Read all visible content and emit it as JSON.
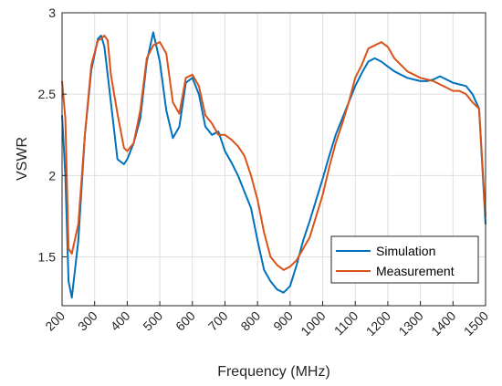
{
  "chart_data": {
    "type": "line",
    "title": "",
    "xlabel": "Frequency (MHz)",
    "ylabel": "VSWR",
    "xlim": [
      200,
      1500
    ],
    "ylim": [
      1.2,
      3
    ],
    "x_ticks": [
      200,
      300,
      400,
      500,
      600,
      700,
      800,
      900,
      1000,
      1100,
      1200,
      1300,
      1400,
      1500
    ],
    "y_ticks": [
      1.5,
      2,
      2.5,
      3
    ],
    "x_tick_labels": [
      "200",
      "300",
      "400",
      "500",
      "600",
      "700",
      "800",
      "900",
      "1000",
      "1100",
      "1200",
      "1300",
      "1400",
      "1500"
    ],
    "y_tick_labels": [
      "1.5",
      "2",
      "2.5",
      "3"
    ],
    "grid": true,
    "legend_position": "bottom-right",
    "series": [
      {
        "name": "Simulation",
        "color": "#0072BD",
        "x": [
          200,
          210,
          220,
          230,
          250,
          270,
          290,
          310,
          320,
          330,
          350,
          370,
          390,
          400,
          420,
          440,
          460,
          480,
          500,
          520,
          540,
          560,
          580,
          600,
          620,
          640,
          660,
          680,
          700,
          720,
          740,
          760,
          780,
          800,
          820,
          840,
          860,
          880,
          900,
          920,
          940,
          960,
          980,
          1000,
          1020,
          1040,
          1060,
          1080,
          1100,
          1120,
          1140,
          1160,
          1180,
          1200,
          1220,
          1240,
          1260,
          1280,
          1300,
          1320,
          1340,
          1360,
          1380,
          1400,
          1420,
          1440,
          1460,
          1480,
          1500
        ],
        "y": [
          2.37,
          2.0,
          1.35,
          1.25,
          1.6,
          2.25,
          2.65,
          2.84,
          2.86,
          2.79,
          2.45,
          2.1,
          2.07,
          2.1,
          2.2,
          2.35,
          2.7,
          2.88,
          2.7,
          2.4,
          2.23,
          2.3,
          2.57,
          2.6,
          2.5,
          2.3,
          2.25,
          2.27,
          2.15,
          2.08,
          2.0,
          1.9,
          1.8,
          1.6,
          1.42,
          1.35,
          1.3,
          1.28,
          1.32,
          1.45,
          1.6,
          1.72,
          1.85,
          1.98,
          2.12,
          2.25,
          2.35,
          2.45,
          2.55,
          2.63,
          2.7,
          2.72,
          2.7,
          2.67,
          2.64,
          2.62,
          2.6,
          2.59,
          2.58,
          2.58,
          2.59,
          2.61,
          2.59,
          2.57,
          2.56,
          2.55,
          2.5,
          2.41,
          1.7
        ]
      },
      {
        "name": "Measurement",
        "color": "#D95319",
        "x": [
          200,
          210,
          220,
          230,
          250,
          270,
          290,
          310,
          320,
          330,
          340,
          350,
          370,
          390,
          400,
          420,
          440,
          460,
          480,
          500,
          520,
          540,
          560,
          580,
          600,
          620,
          640,
          660,
          680,
          700,
          720,
          740,
          760,
          780,
          800,
          820,
          840,
          860,
          880,
          900,
          920,
          940,
          960,
          980,
          1000,
          1020,
          1040,
          1060,
          1080,
          1100,
          1120,
          1140,
          1160,
          1180,
          1200,
          1220,
          1240,
          1260,
          1280,
          1300,
          1320,
          1340,
          1360,
          1380,
          1400,
          1420,
          1440,
          1460,
          1480,
          1500
        ],
        "y": [
          2.58,
          2.35,
          1.55,
          1.52,
          1.7,
          2.25,
          2.68,
          2.83,
          2.84,
          2.86,
          2.83,
          2.62,
          2.38,
          2.17,
          2.15,
          2.2,
          2.4,
          2.72,
          2.8,
          2.82,
          2.75,
          2.45,
          2.38,
          2.6,
          2.62,
          2.55,
          2.37,
          2.32,
          2.25,
          2.25,
          2.22,
          2.18,
          2.12,
          2.0,
          1.85,
          1.65,
          1.5,
          1.45,
          1.42,
          1.44,
          1.48,
          1.55,
          1.62,
          1.75,
          1.88,
          2.05,
          2.2,
          2.32,
          2.45,
          2.6,
          2.68,
          2.78,
          2.8,
          2.82,
          2.79,
          2.72,
          2.68,
          2.64,
          2.62,
          2.6,
          2.59,
          2.58,
          2.56,
          2.54,
          2.52,
          2.52,
          2.5,
          2.45,
          2.41,
          1.75
        ]
      }
    ]
  }
}
